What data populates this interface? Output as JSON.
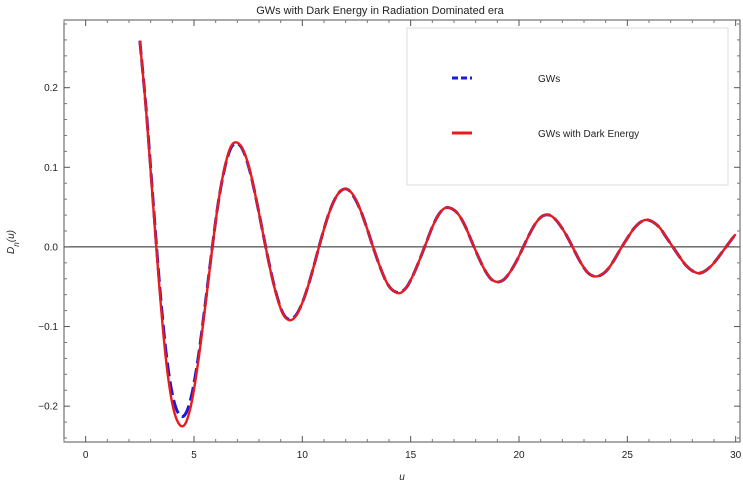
{
  "chart_data": {
    "type": "line",
    "title": "GWs with Dark Energy in Radiation Dominated era",
    "xlabel": "u",
    "ylabel": "D_n(u)",
    "xlim": [
      -1.0,
      30.2
    ],
    "ylim": [
      -0.245,
      0.285
    ],
    "xticks": [
      0,
      5,
      10,
      15,
      20,
      25,
      30
    ],
    "xtick_labels": [
      "0",
      "5",
      "10",
      "15",
      "20",
      "25",
      "30"
    ],
    "yticks": [
      -0.2,
      -0.1,
      0.0,
      0.1,
      0.2
    ],
    "ytick_labels": [
      "−0.2",
      "−0.1",
      "0.0",
      "0.1",
      "0.2"
    ],
    "legend_position": "top-right",
    "grid": false,
    "series": [
      {
        "name": "GWs",
        "color": "#1a1adb",
        "style": "dashed",
        "x": [
          2.5,
          2.8,
          3.1,
          3.4,
          3.7,
          4.0,
          4.3,
          4.6,
          4.9,
          5.2,
          5.5,
          5.8,
          6.1,
          6.4,
          6.7,
          7.0,
          7.3,
          7.6,
          7.9,
          8.2,
          8.5,
          8.8,
          9.1,
          9.4,
          9.7,
          10.0,
          10.3,
          10.6,
          10.9,
          11.2,
          11.5,
          11.8,
          12.1,
          12.4,
          12.7,
          13.0,
          13.3,
          13.6,
          13.9,
          14.2,
          14.5,
          14.8,
          15.1,
          15.4,
          15.7,
          16.0,
          16.3,
          16.6,
          16.9,
          17.2,
          17.5,
          17.8,
          18.1,
          18.4,
          18.7,
          19.0,
          19.3,
          19.6,
          19.9,
          20.2,
          20.5,
          20.8,
          21.1,
          21.4,
          21.7,
          22.0,
          22.3,
          22.6,
          22.9,
          23.2,
          23.5,
          23.8,
          24.1,
          24.4,
          24.7,
          25.0,
          25.3,
          25.6,
          25.9,
          26.2,
          26.5,
          26.8,
          27.1,
          27.4,
          27.7,
          28.0,
          28.3,
          28.6,
          28.9,
          29.2,
          29.5,
          29.8,
          30.0
        ],
        "values": [
          0.259,
          0.17,
          0.062,
          -0.044,
          -0.13,
          -0.185,
          -0.21,
          -0.21,
          -0.185,
          -0.138,
          -0.076,
          -0.01,
          0.052,
          0.097,
          0.124,
          0.13,
          0.119,
          0.093,
          0.056,
          0.015,
          -0.025,
          -0.059,
          -0.083,
          -0.091,
          -0.086,
          -0.07,
          -0.046,
          -0.017,
          0.013,
          0.04,
          0.06,
          0.071,
          0.072,
          0.062,
          0.045,
          0.022,
          -0.003,
          -0.026,
          -0.045,
          -0.055,
          -0.057,
          -0.051,
          -0.036,
          -0.017,
          0.004,
          0.025,
          0.041,
          0.049,
          0.048,
          0.041,
          0.027,
          0.008,
          -0.011,
          -0.028,
          -0.04,
          -0.044,
          -0.041,
          -0.031,
          -0.017,
          0.0,
          0.017,
          0.031,
          0.039,
          0.04,
          0.034,
          0.023,
          0.009,
          -0.007,
          -0.022,
          -0.033,
          -0.037,
          -0.035,
          -0.028,
          -0.016,
          -0.002,
          0.011,
          0.023,
          0.031,
          0.034,
          0.031,
          0.024,
          0.012,
          0.0,
          -0.012,
          -0.023,
          -0.03,
          -0.033,
          -0.03,
          -0.023,
          -0.013,
          -0.002,
          0.009,
          0.016
        ]
      },
      {
        "name": "GWs with Dark Energy",
        "color": "#e81c1c",
        "style": "solid",
        "x": [
          2.5,
          2.8,
          3.1,
          3.4,
          3.7,
          4.0,
          4.3,
          4.6,
          4.9,
          5.2,
          5.5,
          5.8,
          6.1,
          6.4,
          6.7,
          7.0,
          7.3,
          7.6,
          7.9,
          8.2,
          8.5,
          8.8,
          9.1,
          9.4,
          9.7,
          10.0,
          10.3,
          10.6,
          10.9,
          11.2,
          11.5,
          11.8,
          12.1,
          12.4,
          12.7,
          13.0,
          13.3,
          13.6,
          13.9,
          14.2,
          14.5,
          14.8,
          15.1,
          15.4,
          15.7,
          16.0,
          16.3,
          16.6,
          16.9,
          17.2,
          17.5,
          17.8,
          18.1,
          18.4,
          18.7,
          19.0,
          19.3,
          19.6,
          19.9,
          20.2,
          20.5,
          20.8,
          21.1,
          21.4,
          21.7,
          22.0,
          22.3,
          22.6,
          22.9,
          23.2,
          23.5,
          23.8,
          24.1,
          24.4,
          24.7,
          25.0,
          25.3,
          25.6,
          25.9,
          26.2,
          26.5,
          26.8,
          27.1,
          27.4,
          27.7,
          28.0,
          28.3,
          28.6,
          28.9,
          29.2,
          29.5,
          29.8,
          30.0
        ],
        "values": [
          0.259,
          0.168,
          0.058,
          -0.05,
          -0.14,
          -0.197,
          -0.222,
          -0.222,
          -0.194,
          -0.143,
          -0.079,
          -0.011,
          0.052,
          0.098,
          0.126,
          0.131,
          0.12,
          0.094,
          0.056,
          0.015,
          -0.026,
          -0.06,
          -0.084,
          -0.092,
          -0.087,
          -0.07,
          -0.046,
          -0.017,
          0.013,
          0.04,
          0.06,
          0.071,
          0.072,
          0.063,
          0.045,
          0.022,
          -0.003,
          -0.026,
          -0.045,
          -0.055,
          -0.058,
          -0.051,
          -0.036,
          -0.017,
          0.004,
          0.025,
          0.041,
          0.049,
          0.048,
          0.041,
          0.027,
          0.008,
          -0.011,
          -0.028,
          -0.04,
          -0.044,
          -0.041,
          -0.031,
          -0.017,
          0.0,
          0.017,
          0.031,
          0.039,
          0.04,
          0.034,
          0.023,
          0.009,
          -0.007,
          -0.022,
          -0.033,
          -0.037,
          -0.035,
          -0.028,
          -0.016,
          -0.002,
          0.011,
          0.023,
          0.031,
          0.034,
          0.031,
          0.024,
          0.012,
          0.0,
          -0.012,
          -0.023,
          -0.03,
          -0.033,
          -0.03,
          -0.023,
          -0.013,
          -0.002,
          0.009,
          0.016
        ]
      }
    ]
  }
}
